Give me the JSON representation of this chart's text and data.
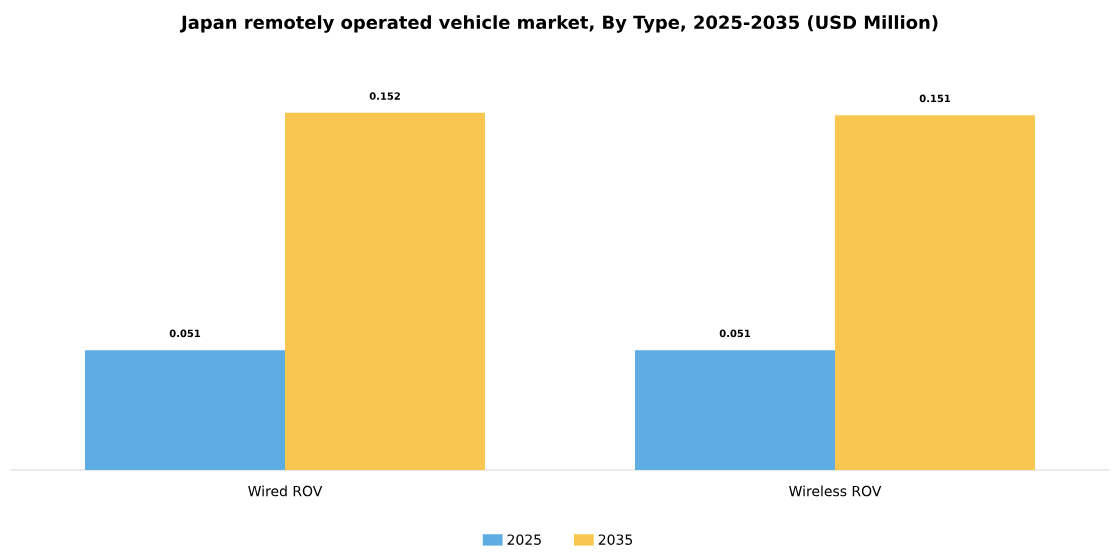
{
  "chart_data": {
    "type": "bar",
    "title": "Japan remotely operated vehicle market, By Type, 2025-2035 (USD Million)",
    "categories": [
      "Wired ROV",
      "Wireless ROV"
    ],
    "series": [
      {
        "name": "2025",
        "color": "#5dade2",
        "values": [
          0.051,
          0.051
        ]
      },
      {
        "name": "2035",
        "color": "#f9c74f",
        "values": [
          0.152,
          0.151
        ]
      }
    ],
    "data_labels": true,
    "legend": "bottom"
  }
}
